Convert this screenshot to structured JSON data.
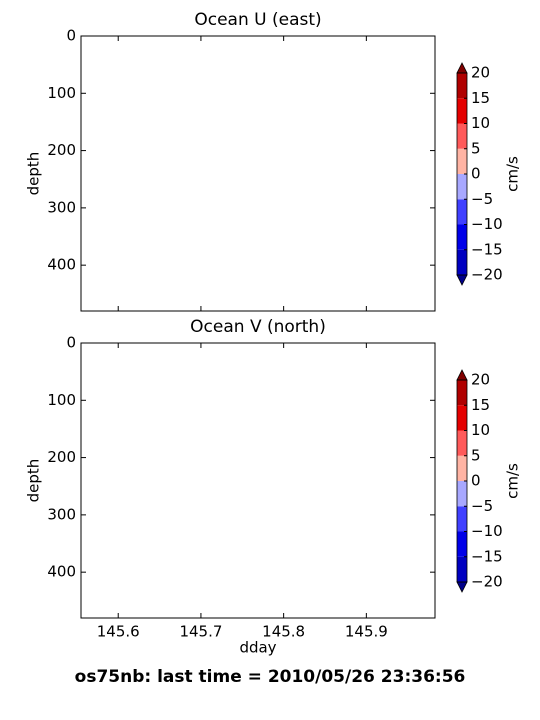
{
  "chart_data": [
    {
      "type": "contour",
      "title": "Ocean U (east)",
      "ylabel": "depth",
      "xlim": [
        145.555,
        145.983
      ],
      "xticks": [
        145.6,
        145.7,
        145.8,
        145.9
      ],
      "show_xticklabels": false,
      "ylim": [
        480,
        0
      ],
      "yticks": [
        0,
        100,
        200,
        300,
        400
      ],
      "colorbar": {
        "label": "cm/s",
        "lim": [
          -20,
          20
        ],
        "levels": [
          -20,
          -15,
          -10,
          -5,
          0,
          5,
          10,
          15,
          20
        ],
        "colors": [
          "#0000c0",
          "#0000e8",
          "#4040ff",
          "#a8a8ff",
          "#ffb4a4",
          "#ff5a5a",
          "#e40000",
          "#b00000"
        ],
        "under_color": "#00008a",
        "over_color": "#800000",
        "ticks": [
          {
            "value": -20,
            "label": "−20"
          },
          {
            "value": -15,
            "label": "−15"
          },
          {
            "value": -10,
            "label": "−10"
          },
          {
            "value": -5,
            "label": "−5"
          },
          0,
          5,
          10,
          15,
          20
        ]
      }
    },
    {
      "type": "contour",
      "title": "Ocean V (north)",
      "ylabel": "depth",
      "xlabel": "dday",
      "xlim": [
        145.555,
        145.983
      ],
      "xticks": [
        145.6,
        145.7,
        145.8,
        145.9
      ],
      "show_xticklabels": true,
      "ylim": [
        480,
        0
      ],
      "yticks": [
        0,
        100,
        200,
        300,
        400
      ],
      "colorbar": {
        "label": "cm/s",
        "lim": [
          -20,
          20
        ],
        "levels": [
          -20,
          -15,
          -10,
          -5,
          0,
          5,
          10,
          15,
          20
        ],
        "colors": [
          "#0000c0",
          "#0000e8",
          "#4040ff",
          "#a8a8ff",
          "#ffb4a4",
          "#ff5a5a",
          "#e40000",
          "#b00000"
        ],
        "under_color": "#00008a",
        "over_color": "#800000",
        "ticks": [
          {
            "value": -20,
            "label": "−20"
          },
          {
            "value": -15,
            "label": "−15"
          },
          {
            "value": -10,
            "label": "−10"
          },
          {
            "value": -5,
            "label": "−5"
          },
          0,
          5,
          10,
          15,
          20
        ]
      }
    }
  ],
  "footer": "os75nb: last time = 2010/05/26 23:36:56"
}
